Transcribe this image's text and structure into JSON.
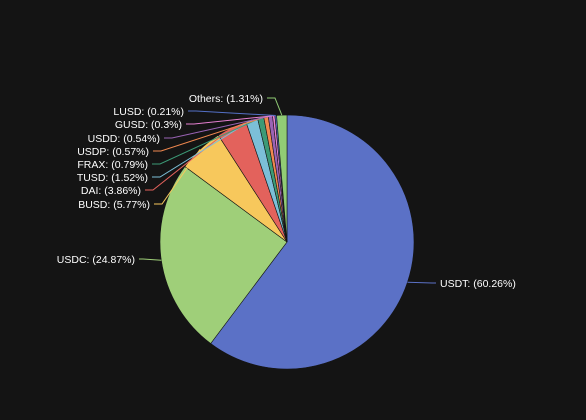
{
  "chart_data": {
    "type": "pie",
    "title": "",
    "slices": [
      {
        "name": "USDT",
        "value": 60.26,
        "label": "USDT: (60.26%)",
        "color": "#5b71c6"
      },
      {
        "name": "USDC",
        "value": 24.87,
        "label": "USDC: (24.87%)",
        "color": "#9fcf79"
      },
      {
        "name": "BUSD",
        "value": 5.77,
        "label": "BUSD: (5.77%)",
        "color": "#f7c85c"
      },
      {
        "name": "DAI",
        "value": 3.86,
        "label": "DAI: (3.86%)",
        "color": "#e3625c"
      },
      {
        "name": "TUSD",
        "value": 1.52,
        "label": "TUSD: (1.52%)",
        "color": "#7cbfd8"
      },
      {
        "name": "FRAX",
        "value": 0.79,
        "label": "FRAX: (0.79%)",
        "color": "#3c9a76"
      },
      {
        "name": "USDP",
        "value": 0.57,
        "label": "USDP: (0.57%)",
        "color": "#f0884f"
      },
      {
        "name": "USDD",
        "value": 0.54,
        "label": "USDD: (0.54%)",
        "color": "#9a63b5"
      },
      {
        "name": "GUSD",
        "value": 0.3,
        "label": "GUSD: (0.3%)",
        "color": "#e57fd0"
      },
      {
        "name": "LUSD",
        "value": 0.21,
        "label": "LUSD: (0.21%)",
        "color": "#5470c6"
      },
      {
        "name": "Others",
        "value": 1.31,
        "label": "Others: (1.31%)",
        "color": "#91cc75"
      }
    ],
    "start_angle": "12 o'clock",
    "direction": "clockwise",
    "legend": "none"
  }
}
